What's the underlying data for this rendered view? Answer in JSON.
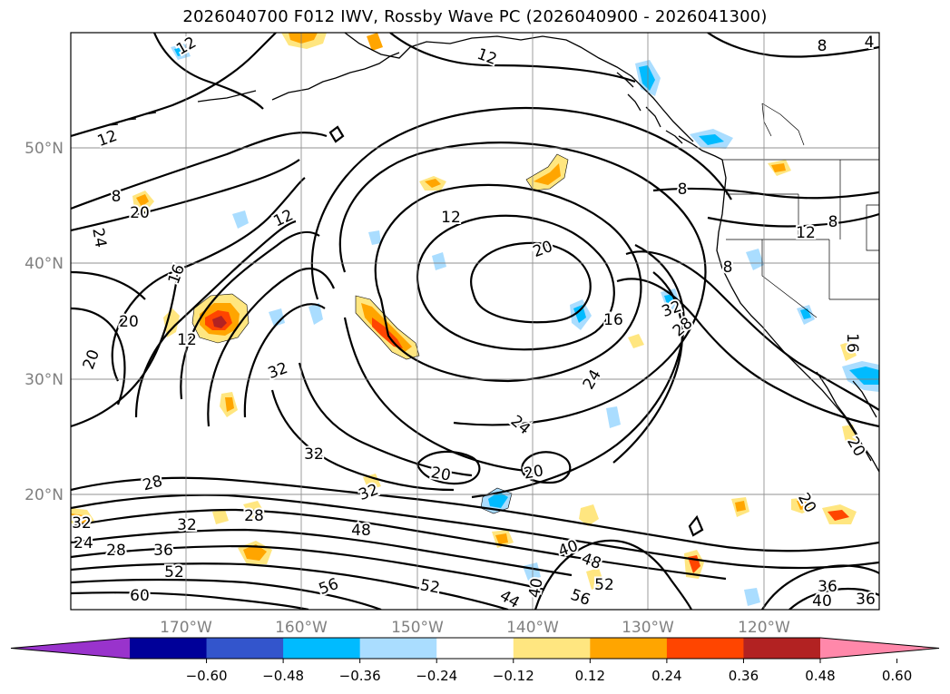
{
  "title": "2026040700 F012 IWV, Rossby Wave PC (2026040900 - 2026041300)",
  "lat_ticks": [
    "50°N",
    "40°N",
    "30°N",
    "20°N"
  ],
  "lon_ticks": [
    "170°W",
    "160°W",
    "150°W",
    "140°W",
    "130°W",
    "120°W"
  ],
  "colorbar": {
    "colors": [
      "#9933cc",
      "#000099",
      "#3355cc",
      "#00bbff",
      "#aaddff",
      "#ffffff",
      "#ffe680",
      "#ffa500",
      "#ff4500",
      "#b22222",
      "#ff88aa"
    ],
    "tick_labels": [
      "−0.60",
      "−0.48",
      "−0.36",
      "−0.24",
      "−0.12",
      "0.12",
      "0.24",
      "0.36",
      "0.48",
      "0.60"
    ]
  },
  "contour_labels": [
    {
      "id": "c1",
      "text": "12"
    },
    {
      "id": "c2",
      "text": "12"
    },
    {
      "id": "c3",
      "text": "12"
    },
    {
      "id": "c4",
      "text": "8"
    },
    {
      "id": "c5",
      "text": "8"
    },
    {
      "id": "c6",
      "text": "20"
    },
    {
      "id": "c7",
      "text": "24"
    },
    {
      "id": "c8",
      "text": "12"
    },
    {
      "id": "c9",
      "text": "16"
    },
    {
      "id": "c10",
      "text": "20"
    },
    {
      "id": "c11",
      "text": "12"
    },
    {
      "id": "c12",
      "text": "12"
    },
    {
      "id": "c13",
      "text": "20"
    },
    {
      "id": "c14",
      "text": "8"
    },
    {
      "id": "c15",
      "text": "12"
    },
    {
      "id": "c16",
      "text": "8"
    },
    {
      "id": "c17",
      "text": "8"
    },
    {
      "id": "c18",
      "text": "16"
    },
    {
      "id": "c19",
      "text": "32"
    },
    {
      "id": "c20",
      "text": "28"
    },
    {
      "id": "c21",
      "text": "20"
    },
    {
      "id": "c22",
      "text": "32"
    },
    {
      "id": "c23",
      "text": "24"
    },
    {
      "id": "c24",
      "text": "24"
    },
    {
      "id": "c25",
      "text": "16"
    },
    {
      "id": "c26",
      "text": "20"
    },
    {
      "id": "c27",
      "text": "32"
    },
    {
      "id": "c28",
      "text": "28"
    },
    {
      "id": "c29",
      "text": "20"
    },
    {
      "id": "c30",
      "text": "20"
    },
    {
      "id": "c31",
      "text": "32"
    },
    {
      "id": "c32",
      "text": "32"
    },
    {
      "id": "c33",
      "text": "28"
    },
    {
      "id": "c34",
      "text": "32"
    },
    {
      "id": "c35",
      "text": "24"
    },
    {
      "id": "c36",
      "text": "28"
    },
    {
      "id": "c37",
      "text": "36"
    },
    {
      "id": "c38",
      "text": "52"
    },
    {
      "id": "c39",
      "text": "60"
    },
    {
      "id": "c40",
      "text": "48"
    },
    {
      "id": "c41",
      "text": "56"
    },
    {
      "id": "c42",
      "text": "52"
    },
    {
      "id": "c43",
      "text": "44"
    },
    {
      "id": "c44",
      "text": "40"
    },
    {
      "id": "c45",
      "text": "40"
    },
    {
      "id": "c46",
      "text": "48"
    },
    {
      "id": "c47",
      "text": "52"
    },
    {
      "id": "c48",
      "text": "56"
    },
    {
      "id": "c49",
      "text": "36"
    },
    {
      "id": "c50",
      "text": "40"
    },
    {
      "id": "c51",
      "text": "36"
    },
    {
      "id": "c52",
      "text": "4"
    },
    {
      "id": "c53",
      "text": "20"
    }
  ]
}
